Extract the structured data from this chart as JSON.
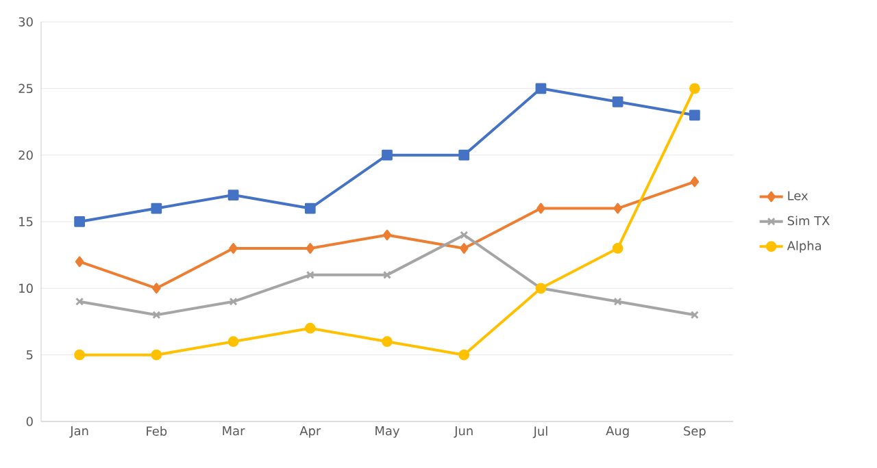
{
  "chart_data": {
    "type": "line",
    "categories": [
      "Jan",
      "Feb",
      "Mar",
      "Apr",
      "May",
      "Jun",
      "Jul",
      "Aug",
      "Sep"
    ],
    "series": [
      {
        "color": "#4472c4",
        "marker": "square",
        "values": [
          15,
          16,
          17,
          16,
          20,
          20,
          25,
          24,
          23
        ]
      },
      {
        "name": "Lex",
        "color": "#ed7d31",
        "marker": "diamond",
        "values": [
          12,
          10,
          13,
          13,
          14,
          13,
          16,
          16,
          18
        ]
      },
      {
        "name": "Sim TX",
        "color": "#a5a5a5",
        "marker": "cross",
        "values": [
          9,
          8,
          9,
          11,
          11,
          14,
          10,
          9,
          8
        ]
      },
      {
        "name": "Alpha",
        "color": "#ffc000",
        "marker": "circle",
        "values": [
          5,
          5,
          6,
          7,
          6,
          5,
          10,
          13,
          25
        ]
      }
    ],
    "ylim": [
      0,
      30
    ],
    "yticks": [
      0,
      5,
      10,
      15,
      20,
      25,
      30
    ],
    "grid": "y",
    "legend": "right"
  }
}
